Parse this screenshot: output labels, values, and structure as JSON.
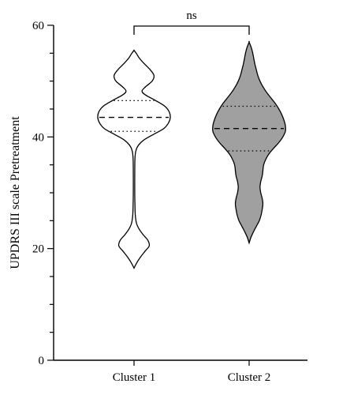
{
  "chart_data": {
    "type": "violin",
    "ylabel": "UPDRS III scale Pretreatment",
    "xlabel": "",
    "ylim": [
      0,
      60
    ],
    "yticks": [
      0,
      20,
      40,
      60
    ],
    "categories": [
      "Cluster 1",
      "Cluster 2"
    ],
    "significance": {
      "between": [
        "Cluster 1",
        "Cluster 2"
      ],
      "label": "ns"
    },
    "series": [
      {
        "category": "Cluster 1",
        "fill": "#ffffff",
        "min": 16.5,
        "max": 55.5,
        "median": 43.5,
        "q1": 41.0,
        "q3": 46.5,
        "density": [
          [
            16.5,
            0.0
          ],
          [
            17.5,
            0.08
          ],
          [
            18.5,
            0.18
          ],
          [
            19.5,
            0.3
          ],
          [
            20.5,
            0.42
          ],
          [
            21.5,
            0.38
          ],
          [
            22.5,
            0.25
          ],
          [
            23.5,
            0.14
          ],
          [
            24.5,
            0.07
          ],
          [
            26,
            0.035
          ],
          [
            28,
            0.025
          ],
          [
            30,
            0.02
          ],
          [
            33,
            0.02
          ],
          [
            36,
            0.025
          ],
          [
            37.5,
            0.05
          ],
          [
            38.5,
            0.12
          ],
          [
            39.5,
            0.28
          ],
          [
            40.5,
            0.55
          ],
          [
            41.5,
            0.82
          ],
          [
            42.5,
            0.95
          ],
          [
            43.5,
            1.0
          ],
          [
            44.5,
            0.97
          ],
          [
            45.5,
            0.85
          ],
          [
            46.5,
            0.6
          ],
          [
            47.5,
            0.32
          ],
          [
            48.2,
            0.22
          ],
          [
            49,
            0.32
          ],
          [
            50,
            0.5
          ],
          [
            51,
            0.55
          ],
          [
            52,
            0.45
          ],
          [
            53,
            0.3
          ],
          [
            54,
            0.16
          ],
          [
            55,
            0.06
          ],
          [
            55.5,
            0.0
          ]
        ]
      },
      {
        "category": "Cluster 2",
        "fill": "#a0a0a0",
        "min": 21.0,
        "max": 57.0,
        "median": 41.5,
        "q1": 37.5,
        "q3": 45.5,
        "density": [
          [
            21.0,
            0.0
          ],
          [
            22,
            0.05
          ],
          [
            23,
            0.12
          ],
          [
            24,
            0.2
          ],
          [
            25,
            0.28
          ],
          [
            26,
            0.33
          ],
          [
            27,
            0.36
          ],
          [
            28,
            0.38
          ],
          [
            29,
            0.36
          ],
          [
            30,
            0.32
          ],
          [
            31,
            0.3
          ],
          [
            32,
            0.32
          ],
          [
            33,
            0.36
          ],
          [
            34,
            0.38
          ],
          [
            35,
            0.4
          ],
          [
            36,
            0.46
          ],
          [
            37,
            0.55
          ],
          [
            38,
            0.68
          ],
          [
            39,
            0.82
          ],
          [
            40,
            0.93
          ],
          [
            41,
            1.0
          ],
          [
            42,
            1.0
          ],
          [
            43,
            0.96
          ],
          [
            44,
            0.9
          ],
          [
            45,
            0.82
          ],
          [
            46,
            0.72
          ],
          [
            47,
            0.6
          ],
          [
            48,
            0.48
          ],
          [
            49,
            0.38
          ],
          [
            50,
            0.3
          ],
          [
            51,
            0.24
          ],
          [
            52,
            0.2
          ],
          [
            53,
            0.16
          ],
          [
            54,
            0.13
          ],
          [
            55,
            0.1
          ],
          [
            56,
            0.06
          ],
          [
            57,
            0.0
          ]
        ]
      }
    ]
  }
}
